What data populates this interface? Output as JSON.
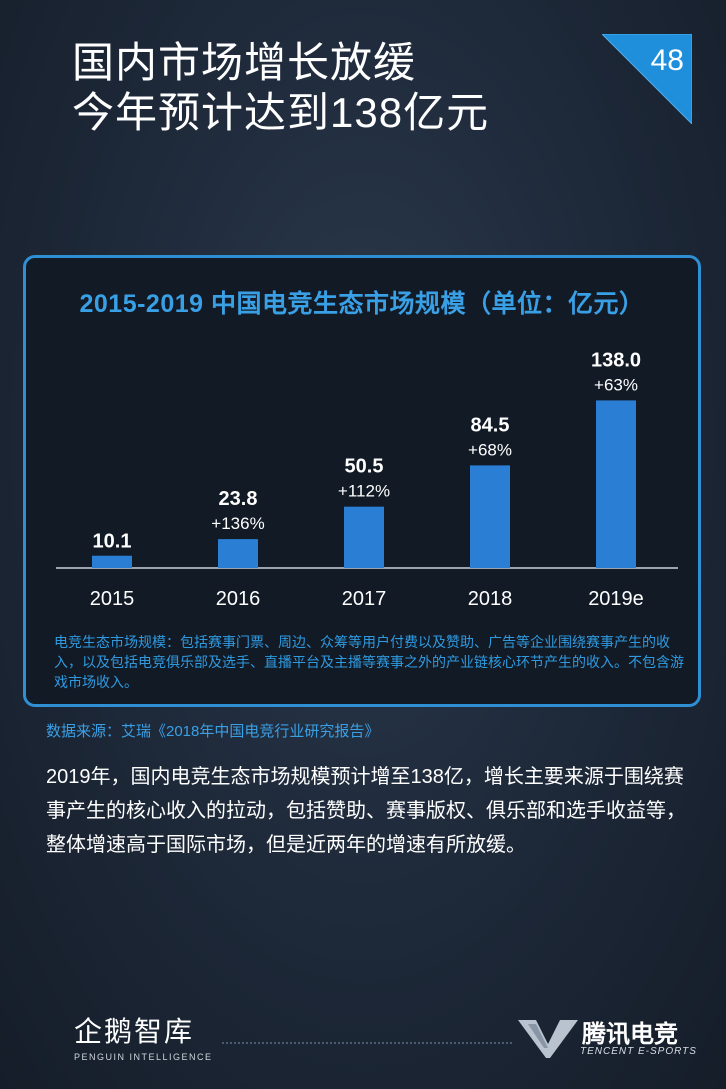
{
  "header": {
    "title_line1": "国内市场增长放缓",
    "title_line2": "今年预计达到138亿元",
    "page_number": "48"
  },
  "chart_data": {
    "type": "bar",
    "title": "2015-2019 中国电竞生态市场规模（单位：亿元）",
    "categories": [
      "2015",
      "2016",
      "2017",
      "2018",
      "2019e"
    ],
    "values": [
      10.1,
      23.8,
      50.5,
      84.5,
      138.0
    ],
    "value_labels": [
      "10.1",
      "23.8",
      "50.5",
      "84.5",
      "138.0"
    ],
    "growth_labels": [
      "",
      "+136%",
      "+112%",
      "+68%",
      "+63%"
    ],
    "ylim": [
      0,
      140
    ],
    "xlabel": "",
    "ylabel": "",
    "grid": false,
    "bar_color": "#2a7fd4"
  },
  "chart_note": "电竞生态市场规模：包括赛事门票、周边、众筹等用户付费以及赞助、广告等企业围绕赛事产生的收入，以及包括电竞俱乐部及选手、直播平台及主播等赛事之外的产业链核心环节产生的收入。不包含游戏市场收入。",
  "source": "数据来源：艾瑞《2018年中国电竞行业研究报告》",
  "body_text": "2019年，国内电竞生态市场规模预计增至138亿，增长主要来源于围绕赛事产生的核心收入的拉动，包括赞助、赛事版权、俱乐部和选手收益等，整体增速高于国际市场，但是近两年的增速有所放缓。",
  "footer": {
    "left_logo_cn": "企鹅智库",
    "left_logo_en": "PENGUIN INTELLIGENCE",
    "right_logo_cn": "腾讯电竞",
    "right_logo_en": "TENCENT E-SPORTS"
  },
  "colors": {
    "accent": "#2f8fd4",
    "bar": "#2a7fd4",
    "note": "#2f9ae0"
  }
}
